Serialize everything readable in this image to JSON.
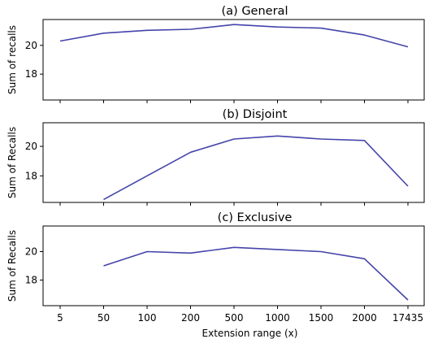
{
  "chart_data": [
    {
      "type": "line",
      "title": "(a) General",
      "ylabel": "Sum of recalls",
      "xlabel": "",
      "categories": [
        "5",
        "50",
        "100",
        "200",
        "500",
        "1000",
        "1500",
        "2000",
        "17435"
      ],
      "yticks": [
        18,
        20
      ],
      "ylim": [
        16.2,
        21.8
      ],
      "series": [
        {
          "color": "#4444aa",
          "values": [
            20.3,
            20.85,
            21.05,
            21.12,
            21.45,
            21.28,
            21.2,
            20.72,
            19.9
          ]
        }
      ]
    },
    {
      "type": "line",
      "title": "(b) Disjoint",
      "ylabel": "Sum of Recalls",
      "xlabel": "",
      "categories": [
        "5",
        "50",
        "100",
        "200",
        "500",
        "1000",
        "1500",
        "2000",
        "17435"
      ],
      "yticks": [
        18,
        20
      ],
      "ylim": [
        16.2,
        21.6
      ],
      "series": [
        {
          "color": "#4444aa",
          "values": [
            null,
            16.4,
            18.0,
            19.6,
            20.5,
            20.7,
            20.5,
            20.4,
            17.3
          ]
        }
      ]
    },
    {
      "type": "line",
      "title": "(c) Exclusive",
      "ylabel": "Sum of Recalls",
      "xlabel": "Extension range (x)",
      "categories": [
        "5",
        "50",
        "100",
        "200",
        "500",
        "1000",
        "1500",
        "2000",
        "17435"
      ],
      "yticks": [
        18,
        20
      ],
      "ylim": [
        16.2,
        21.8
      ],
      "series": [
        {
          "color": "#4444aa",
          "values": [
            null,
            19.0,
            20.0,
            19.9,
            20.3,
            20.15,
            20.0,
            19.5,
            16.6
          ]
        }
      ]
    }
  ]
}
